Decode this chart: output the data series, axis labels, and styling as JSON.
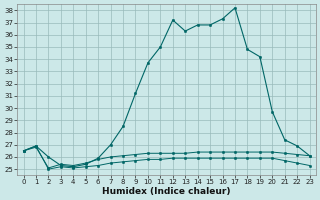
{
  "xlabel": "Humidex (Indice chaleur)",
  "bg_color": "#cce8e8",
  "grid_color": "#99bbbb",
  "line_color": "#006666",
  "xlim": [
    -0.5,
    23.5
  ],
  "ylim": [
    24.5,
    38.5
  ],
  "yticks": [
    25,
    26,
    27,
    28,
    29,
    30,
    31,
    32,
    33,
    34,
    35,
    36,
    37,
    38
  ],
  "xticks": [
    0,
    1,
    2,
    3,
    4,
    5,
    6,
    7,
    8,
    9,
    10,
    11,
    12,
    13,
    14,
    15,
    16,
    17,
    18,
    19,
    20,
    21,
    22,
    23
  ],
  "series_main": [
    26.5,
    26.9,
    26.0,
    25.3,
    25.2,
    25.4,
    25.9,
    27.0,
    28.5,
    31.2,
    33.7,
    35.0,
    37.2,
    36.3,
    36.8,
    36.8,
    37.3,
    38.2,
    34.8,
    34.2,
    29.7,
    27.4,
    26.9,
    26.1
  ],
  "series_flat1": [
    26.5,
    26.8,
    25.1,
    25.4,
    25.3,
    25.5,
    25.8,
    26.0,
    26.1,
    26.2,
    26.3,
    26.3,
    26.3,
    26.3,
    26.4,
    26.4,
    26.4,
    26.4,
    26.4,
    26.4,
    26.4,
    26.3,
    26.2,
    26.1
  ],
  "series_flat2": [
    26.5,
    26.9,
    25.0,
    25.2,
    25.1,
    25.2,
    25.3,
    25.5,
    25.6,
    25.7,
    25.8,
    25.8,
    25.9,
    25.9,
    25.9,
    25.9,
    25.9,
    25.9,
    25.9,
    25.9,
    25.9,
    25.7,
    25.5,
    25.3
  ]
}
